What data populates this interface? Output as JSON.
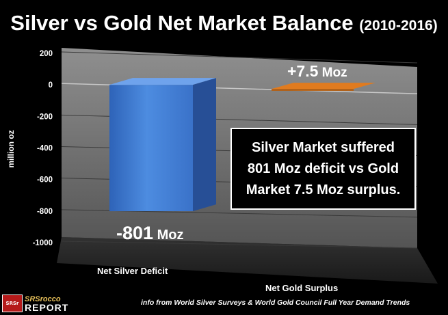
{
  "title": {
    "main": "Silver vs Gold Net Market Balance",
    "sub": "(2010-2016)"
  },
  "chart_data": {
    "type": "bar",
    "categories": [
      "Net Silver Deficit",
      "Net Gold Surplus"
    ],
    "values": [
      -801,
      7.5
    ],
    "data_labels": [
      {
        "value": "-801",
        "unit": "Moz"
      },
      {
        "value": "+7.5",
        "unit": "Moz"
      }
    ],
    "ylabel": "million oz",
    "ylim": [
      -1000,
      200
    ],
    "yticks": [
      200,
      0,
      -200,
      -400,
      -600,
      -800,
      -1000
    ],
    "grid": true,
    "colors": {
      "silver": "#4a86d8",
      "gold": "#e07b1f"
    }
  },
  "annotation": {
    "lines": [
      "Silver Market suffered",
      "801 Moz deficit vs Gold",
      "Market 7.5 Moz surplus."
    ]
  },
  "footer": {
    "logo_badge": "SRSr",
    "logo_line1": "SRSrocco",
    "logo_line2": "REPORT",
    "source": "info from World Silver Surveys & World Gold Council Full Year Demand Trends"
  }
}
